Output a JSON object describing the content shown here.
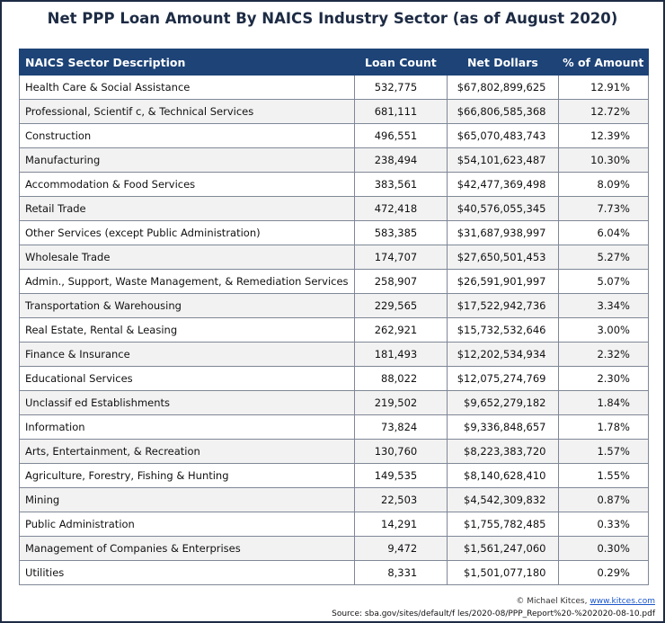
{
  "title": "Net PPP Loan Amount By NAICS Industry Sector (as of August 2020)",
  "table": {
    "header": [
      "NAICS Sector Description",
      "Loan Count",
      "Net Dollars",
      "% of Amount"
    ],
    "rows": [
      [
        "Health Care & Social Assistance",
        "532,775",
        "$67,802,899,625",
        "12.91%"
      ],
      [
        "Professional, Scientif c, & Technical Services",
        "681,111",
        "$66,806,585,368",
        "12.72%"
      ],
      [
        "Construction",
        "496,551",
        "$65,070,483,743",
        "12.39%"
      ],
      [
        "Manufacturing",
        "238,494",
        "$54,101,623,487",
        "10.30%"
      ],
      [
        "Accommodation & Food Services",
        "383,561",
        "$42,477,369,498",
        "8.09%"
      ],
      [
        "Retail Trade",
        "472,418",
        "$40,576,055,345",
        "7.73%"
      ],
      [
        "Other Services (except Public Administration)",
        "583,385",
        "$31,687,938,997",
        "6.04%"
      ],
      [
        "Wholesale Trade",
        "174,707",
        "$27,650,501,453",
        "5.27%"
      ],
      [
        "Admin., Support, Waste Management, & Remediation Services",
        "258,907",
        "$26,591,901,997",
        "5.07%"
      ],
      [
        "Transportation & Warehousing",
        "229,565",
        "$17,522,942,736",
        "3.34%"
      ],
      [
        "Real Estate, Rental & Leasing",
        "262,921",
        "$15,732,532,646",
        "3.00%"
      ],
      [
        "Finance & Insurance",
        "181,493",
        "$12,202,534,934",
        "2.32%"
      ],
      [
        "Educational Services",
        "88,022",
        "$12,075,274,769",
        "2.30%"
      ],
      [
        "Unclassif ed Establishments",
        "219,502",
        "$9,652,279,182",
        "1.84%"
      ],
      [
        "Information",
        "73,824",
        "$9,336,848,657",
        "1.78%"
      ],
      [
        "Arts, Entertainment, & Recreation",
        "130,760",
        "$8,223,383,720",
        "1.57%"
      ],
      [
        "Agriculture, Forestry, Fishing & Hunting",
        "149,535",
        "$8,140,628,410",
        "1.55%"
      ],
      [
        "Mining",
        "22,503",
        "$4,542,309,832",
        "0.87%"
      ],
      [
        "Public Administration",
        "14,291",
        "$1,755,782,485",
        "0.33%"
      ],
      [
        "Management of Companies & Enterprises",
        "9,472",
        "$1,561,247,060",
        "0.30%"
      ],
      [
        "Utilities",
        "8,331",
        "$1,501,077,180",
        "0.29%"
      ]
    ]
  },
  "credit": {
    "author": "© Michael Kitces,",
    "url": "www.kitces.com"
  },
  "source": "Source: sba.gov/sites/default/f les/2020-08/PPP_Report%20-%202020-08-10.pdf"
}
